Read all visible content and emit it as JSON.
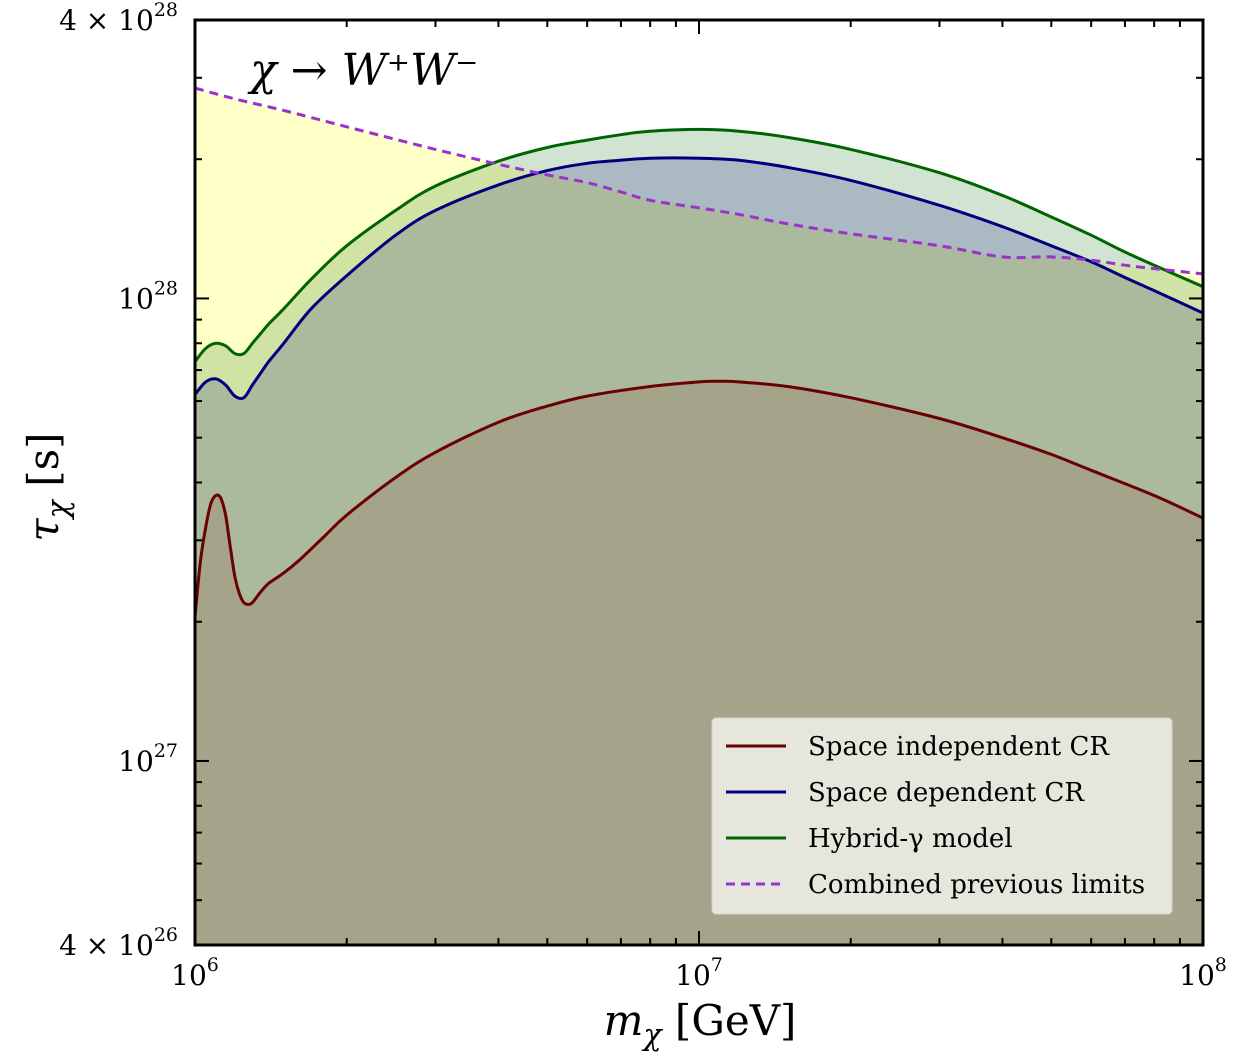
{
  "chart_data": {
    "type": "area",
    "title": "",
    "annotation": "χ → W⁺W⁻",
    "xlabel": {
      "symbol": "m",
      "sub": "χ",
      "unit": " [GeV]"
    },
    "ylabel": {
      "symbol": "τ",
      "sub": "χ",
      "unit": " [s]"
    },
    "xscale": "log",
    "yscale": "log",
    "xlim": [
      1000000,
      100000000
    ],
    "ylim": [
      4e+26,
      4e+28
    ],
    "x_ticks": [
      {
        "value": 1000000,
        "base": "10",
        "exp": "6"
      },
      {
        "value": 10000000,
        "base": "10",
        "exp": "7"
      },
      {
        "value": 100000000,
        "base": "10",
        "exp": "8"
      }
    ],
    "y_ticks": [
      {
        "value": 4e+26,
        "base": "4 × 10",
        "exp": "26"
      },
      {
        "value": 1e+27,
        "base": "10",
        "exp": "27"
      },
      {
        "value": 1e+28,
        "base": "10",
        "exp": "28"
      },
      {
        "value": 4e+28,
        "base": "4 × 10",
        "exp": "28"
      }
    ],
    "legend_position": "lower-right",
    "series": [
      {
        "name": "Combined previous limits",
        "color": "#9933cc",
        "style": "dashed",
        "fill": "#ffffc8",
        "x": [
          1000000,
          1200000,
          1500000,
          2000000,
          3000000,
          4000000,
          5000000,
          6000000,
          7000000,
          8000000,
          10000000,
          12000000,
          15000000,
          20000000,
          30000000,
          40000000,
          50000000,
          60000000,
          70000000,
          80000000,
          100000000
        ],
        "y": [
          2.85e+28,
          2.7e+28,
          2.55e+28,
          2.35e+28,
          2.1e+28,
          1.95e+28,
          1.85e+28,
          1.78e+28,
          1.7e+28,
          1.63e+28,
          1.57e+28,
          1.52e+28,
          1.45e+28,
          1.38e+28,
          1.3e+28,
          1.23e+28,
          1.23e+28,
          1.21e+28,
          1.18e+28,
          1.16e+28,
          1.13e+28
        ]
      },
      {
        "name": "Hybrid-γ model",
        "color": "#006400",
        "style": "solid",
        "fill": "#006400",
        "fill_opacity": 0.18,
        "x": [
          1000000,
          1050000,
          1100000,
          1150000,
          1200000,
          1250000,
          1300000,
          1350000,
          1400000,
          1500000,
          1700000,
          2000000,
          2500000,
          3000000,
          4000000,
          5000000,
          6000000,
          7000000,
          8000000,
          10000000,
          12000000,
          15000000,
          20000000,
          30000000,
          40000000,
          50000000,
          60000000,
          70000000,
          80000000,
          100000000
        ],
        "y": [
          7.3e+27,
          7.8e+27,
          8e+27,
          7.9e+27,
          7.6e+27,
          7.6e+27,
          8e+27,
          8.4e+27,
          8.8e+27,
          9.5e+27,
          1.1e+28,
          1.3e+28,
          1.55e+28,
          1.75e+28,
          1.98e+28,
          2.12e+28,
          2.2e+28,
          2.26e+28,
          2.3e+28,
          2.32e+28,
          2.3e+28,
          2.23e+28,
          2.1e+28,
          1.87e+28,
          1.67e+28,
          1.5e+28,
          1.37e+28,
          1.26e+28,
          1.18e+28,
          1.06e+28
        ]
      },
      {
        "name": "Space dependent CR",
        "color": "#00007f",
        "style": "solid",
        "fill": "#00007f",
        "fill_opacity": 0.18,
        "x": [
          1000000,
          1050000,
          1100000,
          1150000,
          1200000,
          1250000,
          1300000,
          1350000,
          1400000,
          1500000,
          1700000,
          2000000,
          2500000,
          3000000,
          4000000,
          5000000,
          6000000,
          7000000,
          8000000,
          10000000,
          12000000,
          15000000,
          20000000,
          30000000,
          40000000,
          50000000,
          60000000,
          70000000,
          80000000,
          100000000
        ],
        "y": [
          6.2e+27,
          6.6e+27,
          6.7e+27,
          6.5e+27,
          6.15e+27,
          6.1e+27,
          6.5e+27,
          6.9e+27,
          7.3e+27,
          8e+27,
          9.5e+27,
          1.12e+28,
          1.37e+28,
          1.55e+28,
          1.76e+28,
          1.89e+28,
          1.96e+28,
          1.99e+28,
          2.01e+28,
          2.01e+28,
          1.99e+28,
          1.92e+28,
          1.8e+28,
          1.59e+28,
          1.43e+28,
          1.3e+28,
          1.2e+28,
          1.11e+28,
          1.04e+28,
          9.3e+27
        ]
      },
      {
        "name": "Space independent CR",
        "color": "#6b0000",
        "style": "solid",
        "fill": "#7f0000",
        "fill_opacity": 0.12,
        "x": [
          1000000,
          1025000,
          1050000,
          1075000,
          1100000,
          1125000,
          1150000,
          1175000,
          1200000,
          1225000,
          1250000,
          1275000,
          1300000,
          1350000,
          1400000,
          1500000,
          1600000,
          1800000,
          2000000,
          2500000,
          3000000,
          4000000,
          5000000,
          6000000,
          8000000,
          10000000,
          11000000,
          12000000,
          15000000,
          20000000,
          30000000,
          40000000,
          50000000,
          60000000,
          80000000,
          100000000
        ],
        "y": [
          2.05e+27,
          2.7e+27,
          3.2e+27,
          3.6e+27,
          3.75e+27,
          3.7e+27,
          3.4e+27,
          2.9e+27,
          2.5e+27,
          2.3e+27,
          2.2e+27,
          2.18e+27,
          2.2e+27,
          2.32e+27,
          2.42e+27,
          2.55e+27,
          2.7e+27,
          3.05e+27,
          3.4e+27,
          4.1e+27,
          4.65e+27,
          5.4e+27,
          5.85e+27,
          6.15e+27,
          6.45e+27,
          6.6e+27,
          6.62e+27,
          6.6e+27,
          6.45e+27,
          6.1e+27,
          5.5e+27,
          5e+27,
          4.6e+27,
          4.25e+27,
          3.75e+27,
          3.35e+27
        ]
      }
    ],
    "legend_items": [
      {
        "label": "Space independent CR",
        "color": "#6b0000",
        "dashed": false
      },
      {
        "label": "Space dependent CR",
        "color": "#00007f",
        "dashed": false
      },
      {
        "label": "Hybrid-γ model",
        "color": "#006400",
        "dashed": false
      },
      {
        "label": "Combined previous limits",
        "color": "#9933cc",
        "dashed": true
      }
    ]
  }
}
